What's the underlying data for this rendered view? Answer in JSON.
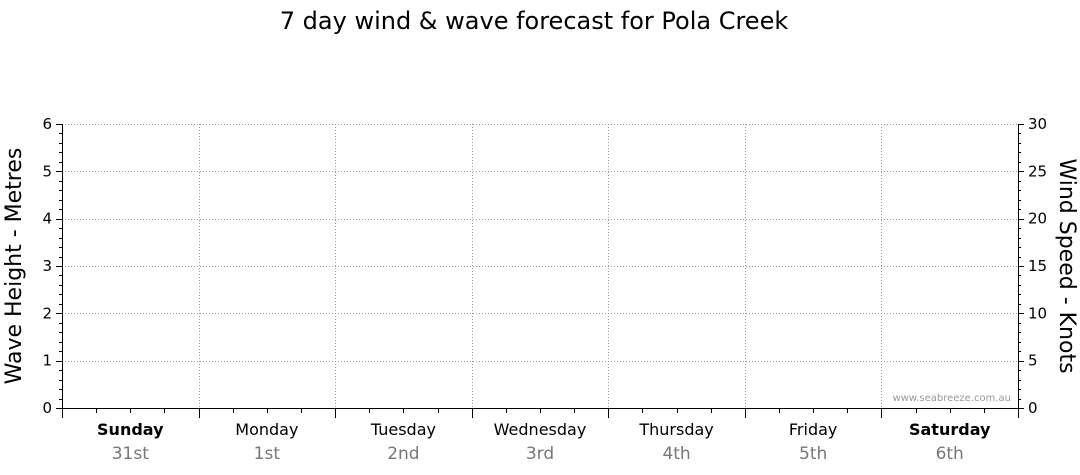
{
  "chart_data": {
    "type": "line",
    "title": "7 day wind & wave forecast for Pola Creek",
    "y_left": {
      "label": "Wave Height - Metres",
      "range": [
        0,
        6
      ],
      "ticks": [
        0,
        1,
        2,
        3,
        4,
        5,
        6
      ],
      "tick_labels": [
        "0",
        "1",
        "2",
        "3",
        "4",
        "5",
        "6"
      ]
    },
    "y_right": {
      "label": "Wind Speed - Knots",
      "range": [
        0,
        30
      ],
      "ticks": [
        0,
        5,
        10,
        15,
        20,
        25,
        30
      ],
      "tick_labels": [
        "0",
        "5",
        "10",
        "15",
        "20",
        "25",
        "30"
      ]
    },
    "days": [
      {
        "day": "Sunday",
        "date": "31st",
        "weekend": true
      },
      {
        "day": "Monday",
        "date": "1st",
        "weekend": false
      },
      {
        "day": "Tuesday",
        "date": "2nd",
        "weekend": false
      },
      {
        "day": "Wednesday",
        "date": "3rd",
        "weekend": false
      },
      {
        "day": "Thursday",
        "date": "4th",
        "weekend": false
      },
      {
        "day": "Friday",
        "date": "5th",
        "weekend": false
      },
      {
        "day": "Saturday",
        "date": "6th",
        "weekend": true
      }
    ],
    "series": [],
    "grid": true,
    "watermark": "www.seabreeze.com.au",
    "colors": {
      "grid": "#999999",
      "axis": "#000000",
      "date_text": "#777777",
      "watermark": "#999999"
    }
  }
}
